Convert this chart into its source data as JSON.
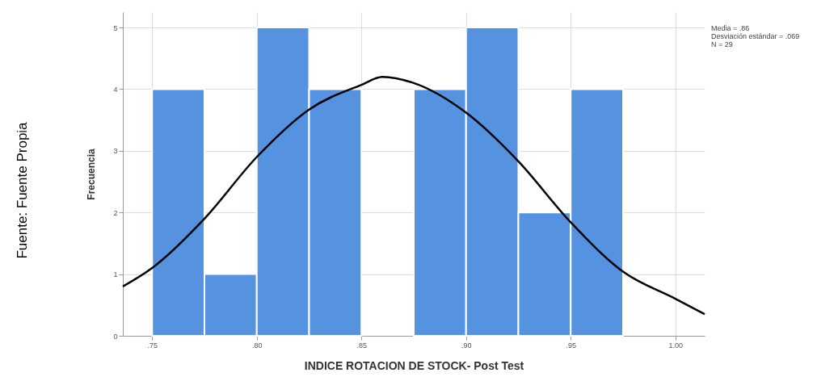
{
  "chart_data": {
    "type": "histogram",
    "xlabel": "INDICE ROTACION DE STOCK- Post Test",
    "ylabel": "Frecuencia",
    "bins": [
      0.75,
      0.775,
      0.8,
      0.825,
      0.85,
      0.875,
      0.9,
      0.925,
      0.95,
      0.975
    ],
    "values": [
      4,
      1,
      5,
      4,
      0,
      4,
      5,
      2,
      4
    ],
    "color": "#5592e0",
    "series": [
      {
        "type": "line",
        "color": "#000000",
        "x": [
          0.736,
          0.75,
          0.775,
          0.8,
          0.825,
          0.85,
          0.86,
          0.875,
          0.9,
          0.925,
          0.95,
          0.975,
          1.0,
          1.014
        ],
        "values": [
          0.8,
          1.1,
          1.9,
          2.9,
          3.67,
          4.07,
          4.2,
          4.1,
          3.62,
          2.83,
          1.84,
          1.04,
          0.6,
          0.35
        ]
      }
    ],
    "xlim": [
      0.736,
      1.014
    ],
    "ylim": [
      0,
      5.25
    ],
    "xticks": [
      {
        "value": 0.75,
        "label": ".75"
      },
      {
        "value": 0.8,
        "label": ".80"
      },
      {
        "value": 0.85,
        "label": ".85"
      },
      {
        "value": 0.9,
        "label": ".90"
      },
      {
        "value": 0.95,
        "label": ".95"
      },
      {
        "value": 1.0,
        "label": "1.00"
      }
    ],
    "yticks": [
      0,
      1,
      2,
      3,
      4,
      5
    ],
    "grid": true,
    "marker": "none",
    "line_style": "solid",
    "annotations": [
      "Media = .86",
      "Desviación estándar = .069",
      "N = 29",
      "Fuente: Fuente Propia"
    ]
  }
}
